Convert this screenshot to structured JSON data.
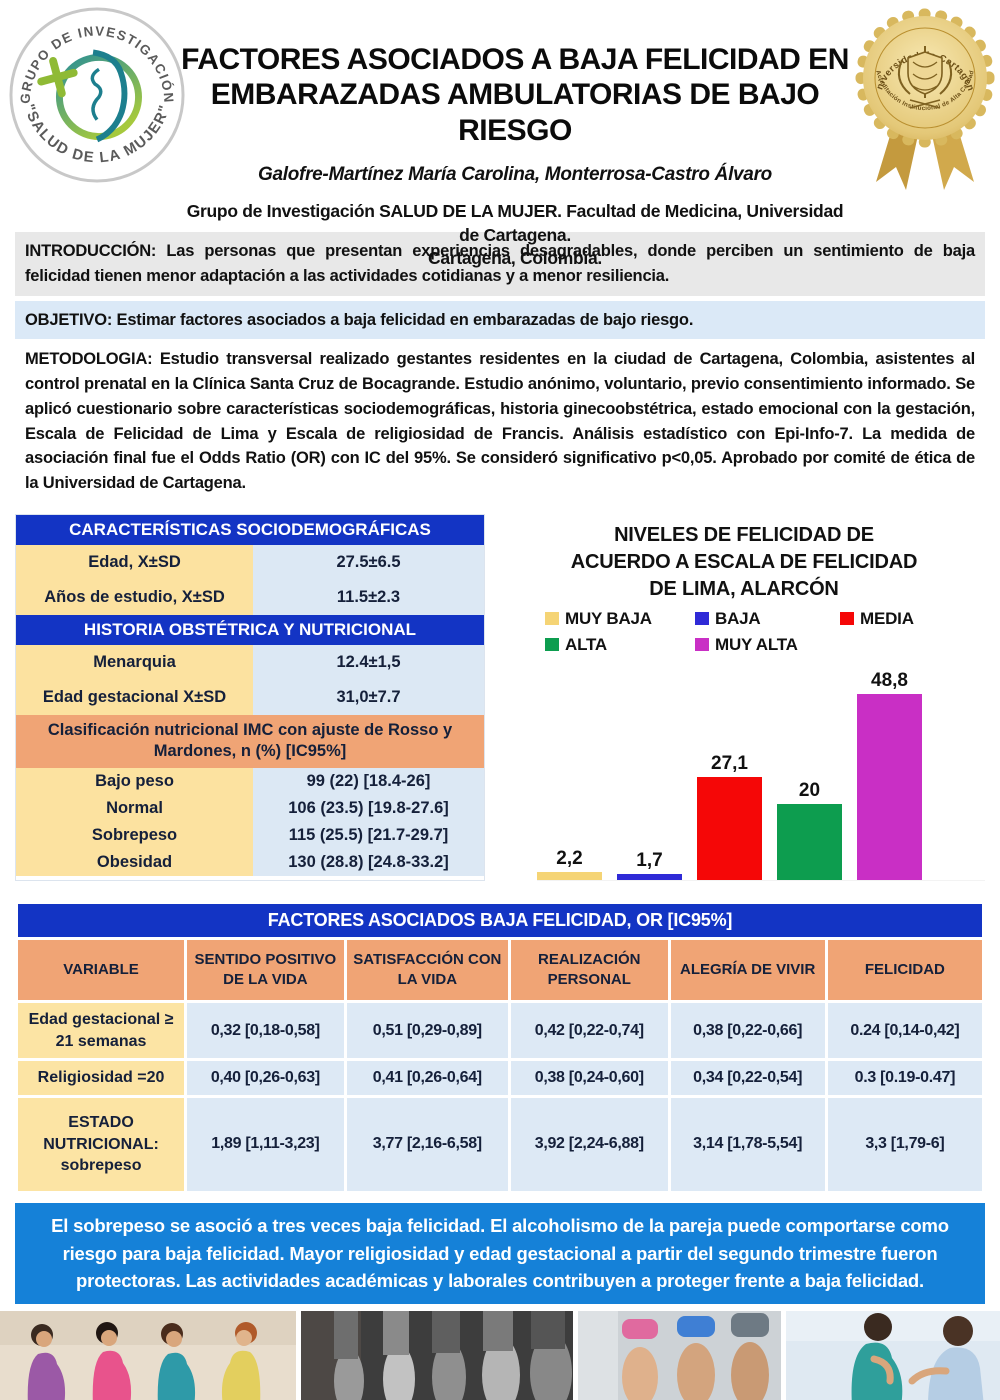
{
  "poster": {
    "title_line1": "FACTORES ASOCIADOS A BAJA FELICIDAD EN",
    "title_line2": "EMBARAZADAS AMBULATORIAS DE BAJO RIESGO",
    "authors": "Galofre-Martínez María Carolina, Monterrosa-Castro Álvaro",
    "affiliation_line1": "Grupo de Investigación SALUD DE LA MUJER. Facultad de Medicina, Universidad de Cartagena.",
    "affiliation_line2": "Cartagena, Colombia."
  },
  "logo": {
    "top_text": "GRUPO DE INVESTIGACIÓN",
    "bottom_text": "\"SALUD DE LA MUJER\""
  },
  "seal": {
    "top_text": "Universidad de Cartagena",
    "bottom_text": "Acreditación Institucional de Alta Calidad"
  },
  "sections": {
    "introduccion": "INTRODUCCIÓN: Las personas que presentan experiencias desagradables, donde perciben un sentimiento de baja felicidad tienen menor adaptación a las actividades cotidianas y a menor resiliencia.",
    "objetivo": "OBJETIVO: Estimar factores asociados a baja felicidad en embarazadas de bajo riesgo.",
    "metodologia": "METODOLOGIA: Estudio transversal realizado gestantes residentes en la ciudad de Cartagena, Colombia, asistentes al control prenatal en la Clínica Santa Cruz de Bocagrande. Estudio anónimo, voluntario, previo consentimiento informado. Se aplicó cuestionario sobre características sociodemográficas, historia ginecoobstétrica, estado emocional con la gestación, Escala de Felicidad de Lima y Escala de religiosidad de Francis. Análisis estadístico con Epi-Info-7. La medida de asociación final fue el Odds Ratio (OR) con IC del 95%. Se consideró significativo p<0,05. Aprobado por comité de ética de la Universidad de Cartagena.",
    "conclusion": "El sobrepeso se asoció a tres veces baja felicidad. El alcoholismo de la pareja puede comportarse como riesgo para baja felicidad. Mayor religiosidad y edad gestacional a partir del segundo trimestre fueron protectoras. Las actividades académicas y laborales contribuyen a proteger frente a baja felicidad."
  },
  "demo_table": {
    "header1": "CARACTERÍSTICAS SOCIODEMOGRÁFICAS",
    "rows1": [
      [
        "Edad, X±SD",
        "27.5±6.5"
      ],
      [
        "Años de estudio, X±SD",
        "11.5±2.3"
      ]
    ],
    "header2": "HISTORIA OBSTÉTRICA Y NUTRICIONAL",
    "rows2": [
      [
        "Menarquia",
        "12.4±1,5"
      ],
      [
        "Edad gestacional X±SD",
        "31,0±7.7"
      ]
    ],
    "header3": "Clasificación nutricional IMC con ajuste de Rosso y Mardones,  n (%) [IC95%]",
    "rows3": [
      [
        "Bajo peso",
        "99 (22) [18.4-26]"
      ],
      [
        "Normal",
        "106 (23.5) [19.8-27.6]"
      ],
      [
        "Sobrepeso",
        "115 (25.5) [21.7-29.7]"
      ],
      [
        "Obesidad",
        "130 (28.8) [24.8-33.2]"
      ]
    ]
  },
  "chart_data": {
    "type": "bar",
    "title": "NIVELES DE FELICIDAD DE ACUERDO A ESCALA DE FELICIDAD DE LIMA, ALARCÓN",
    "categories": [
      "MUY BAJA",
      "BAJA",
      "MEDIA",
      "ALTA",
      "MUY ALTA"
    ],
    "values": [
      2.2,
      1.7,
      27.1,
      20,
      48.8
    ],
    "labels": [
      "2,2",
      "1,7",
      "27,1",
      "20",
      "48,8"
    ],
    "colors": [
      "#f5d475",
      "#2f2ad7",
      "#f50707",
      "#0d9d4f",
      "#c92fc5"
    ],
    "xlabel": "",
    "ylabel": "",
    "ylim": [
      0,
      55
    ],
    "grid": false,
    "legend_position": "top"
  },
  "or_table": {
    "title": "FACTORES ASOCIADOS  BAJA FELICIDAD,  OR [IC95%]",
    "columns": [
      "VARIABLE",
      "SENTIDO POSITIVO DE LA VIDA",
      "SATISFACCIÓN CON LA VIDA",
      "REALIZACIÓN PERSONAL",
      "ALEGRÍA DE VIVIR",
      "FELICIDAD"
    ],
    "rows": [
      {
        "variable": "Edad gestacional ≥ 21 semanas",
        "values": [
          "0,32  [0,18-0,58]",
          "0,51  [0,29-0,89]",
          "0,42 [0,22-0,74]",
          "0,38 [0,22-0,66]",
          "0.24 [0,14-0,42]"
        ]
      },
      {
        "variable": "Religiosidad =20",
        "values": [
          "0,40  [0,26-0,63]",
          "0,41 [0,26-0,64]",
          "0,38 [0,24-0,60]",
          "0,34 [0,22-0,54]",
          "0.3 [0.19-0.47]"
        ]
      },
      {
        "variable": "ESTADO NUTRICIONAL: sobrepeso",
        "values": [
          "1,89  [1,11-3,23]",
          "3,77 [2,16-6,58]",
          "3,92 [2,24-6,88]",
          "3,14 [1,78-5,54]",
          "3,3 [1,79-6]"
        ]
      }
    ]
  },
  "photos": [
    "pregnant-women-group-photo",
    "pregnant-bellies-bw-photo",
    "pregnant-bellies-color-photo",
    "pregnant-couple-photo"
  ],
  "colors": {
    "table_header_blue": "#1334c4",
    "cell_yellow": "#fce2a0",
    "cell_light_blue": "#dce8f4",
    "header_orange": "#f0a475",
    "conclusion_blue": "#1581d8",
    "divider_blue": "#5b9bd5",
    "seal_gold": "#d8b85e"
  }
}
